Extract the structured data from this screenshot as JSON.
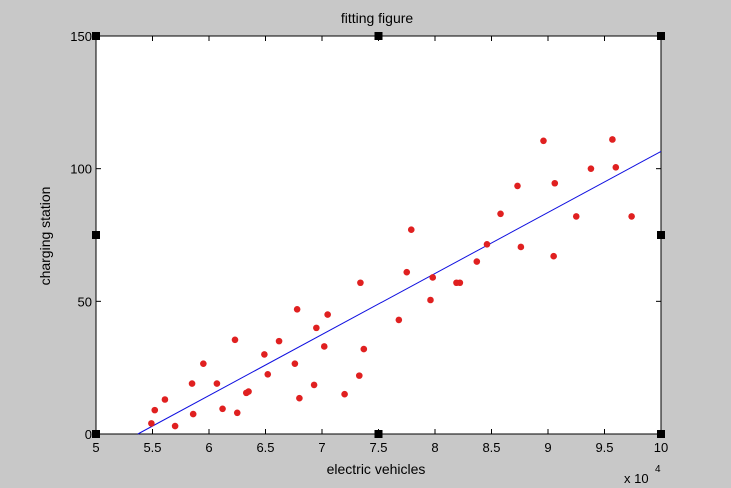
{
  "chart_data": {
    "type": "scatter",
    "title": "fitting figure",
    "xlabel": "electric vehicles",
    "ylabel": "charging station",
    "x_multiplier_text": "x 10",
    "x_multiplier_exponent": "4",
    "xlim": [
      50000,
      100000
    ],
    "ylim": [
      0,
      150
    ],
    "xticks": [
      50000,
      55000,
      60000,
      65000,
      70000,
      75000,
      80000,
      85000,
      90000,
      95000,
      100000
    ],
    "xtick_labels": [
      "5",
      "5.5",
      "6",
      "6.5",
      "7",
      "7.5",
      "8",
      "8.5",
      "9",
      "9.5",
      "10"
    ],
    "yticks": [
      0,
      50,
      100,
      150
    ],
    "ytick_labels": [
      "0",
      "50",
      "100",
      "150"
    ],
    "grid": false,
    "colors": {
      "figure_background": "#c8c8c8",
      "axes_background": "#ffffff",
      "points": "#e02020",
      "fit_line": "#1010e0"
    },
    "series": [
      {
        "kind": "scatter",
        "x": [
          54900,
          55200,
          56100,
          57000,
          58500,
          58600,
          59500,
          60700,
          61200,
          62300,
          62500,
          63300,
          63500,
          64900,
          65200,
          66200,
          67600,
          67800,
          68000,
          69300,
          69500,
          70200,
          70500,
          72000,
          73300,
          73400,
          73700,
          76800,
          77500,
          77900,
          79600,
          79800,
          81900,
          82200,
          83700,
          84600,
          85800,
          87300,
          87600,
          89600,
          90500,
          90600,
          92500,
          93800,
          95700,
          96000,
          97400
        ],
        "y": [
          4,
          9,
          13,
          3,
          19,
          7.5,
          26.5,
          19,
          9.5,
          35.5,
          8,
          15.5,
          16,
          30,
          22.5,
          35,
          26.5,
          47,
          13.5,
          18.5,
          40,
          33,
          45,
          15,
          22,
          57,
          32,
          43,
          61,
          77,
          50.5,
          59,
          57,
          57,
          65,
          71.5,
          83,
          93.5,
          70.5,
          110.5,
          67,
          94.5,
          82,
          100,
          111,
          100.5,
          82
        ]
      },
      {
        "kind": "line",
        "x": [
          53700,
          100000
        ],
        "y": [
          0,
          106.5
        ]
      }
    ]
  }
}
